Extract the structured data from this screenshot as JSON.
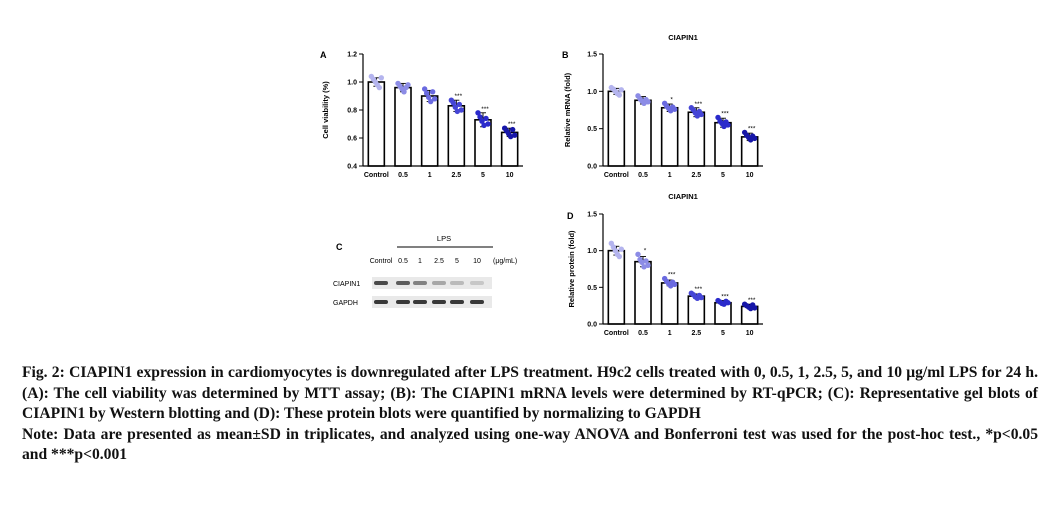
{
  "figure": {
    "panel_a_letter": "A",
    "panel_b_letter": "B",
    "panel_c_letter": "C",
    "panel_d_letter": "D",
    "blot": {
      "treatment_label": "LPS",
      "lanes": [
        "Control",
        "0.5",
        "1",
        "2.5",
        "5",
        "10"
      ],
      "unit": "(μg/mL)",
      "rows": [
        {
          "label": "CIAPIN1",
          "intensity": [
            0.85,
            0.75,
            0.55,
            0.35,
            0.25,
            0.18
          ]
        },
        {
          "label": "GAPDH",
          "intensity": [
            0.95,
            0.95,
            0.95,
            0.95,
            0.95,
            0.95
          ]
        }
      ],
      "colors": {
        "band": "#2e2e2e",
        "background": "#e9e9e9"
      }
    }
  },
  "chart_data": [
    {
      "panel": "A",
      "type": "bar",
      "title": "",
      "xlabel": "",
      "ylabel": "Cell viability (%)",
      "categories": [
        "Control",
        "0.5",
        "1",
        "2.5",
        "5",
        "10"
      ],
      "values": [
        1.0,
        0.96,
        0.9,
        0.83,
        0.73,
        0.64
      ],
      "errors": [
        0.03,
        0.03,
        0.04,
        0.04,
        0.05,
        0.03
      ],
      "significance": [
        "",
        "",
        "",
        "***",
        "***",
        "***"
      ],
      "points": [
        [
          1.04,
          1.02,
          1.0,
          0.98,
          0.96,
          1.03
        ],
        [
          0.99,
          0.97,
          0.95,
          0.93,
          0.96,
          0.98
        ],
        [
          0.95,
          0.92,
          0.89,
          0.86,
          0.93,
          0.88
        ],
        [
          0.87,
          0.85,
          0.82,
          0.79,
          0.84,
          0.8
        ],
        [
          0.78,
          0.75,
          0.72,
          0.69,
          0.74,
          0.7
        ],
        [
          0.67,
          0.65,
          0.63,
          0.61,
          0.66,
          0.62
        ]
      ],
      "ylim": [
        0.4,
        1.2
      ],
      "yticks": [
        "0.4",
        "0.6",
        "0.8",
        "1.0",
        "1.2"
      ]
    },
    {
      "panel": "B",
      "type": "bar",
      "title": "CIAPIN1",
      "xlabel": "",
      "ylabel": "Relative mRNA (fold)",
      "categories": [
        "Control",
        "0.5",
        "1",
        "2.5",
        "5",
        "10"
      ],
      "values": [
        1.0,
        0.88,
        0.78,
        0.72,
        0.58,
        0.39
      ],
      "errors": [
        0.04,
        0.05,
        0.05,
        0.06,
        0.06,
        0.05
      ],
      "significance": [
        "",
        "",
        "*",
        "***",
        "***",
        "***"
      ],
      "points": [
        [
          1.05,
          1.03,
          1.0,
          0.97,
          0.95,
          1.02
        ],
        [
          0.94,
          0.9,
          0.87,
          0.84,
          0.89,
          0.86
        ],
        [
          0.84,
          0.8,
          0.77,
          0.74,
          0.79,
          0.76
        ],
        [
          0.78,
          0.75,
          0.71,
          0.67,
          0.73,
          0.69
        ],
        [
          0.65,
          0.6,
          0.57,
          0.53,
          0.59,
          0.55
        ],
        [
          0.45,
          0.41,
          0.38,
          0.35,
          0.4,
          0.37
        ]
      ],
      "ylim": [
        0.0,
        1.5
      ],
      "yticks": [
        "0.0",
        "0.5",
        "1.0",
        "1.5"
      ]
    },
    {
      "panel": "D",
      "type": "bar",
      "title": "CIAPIN1",
      "xlabel": "",
      "ylabel": "Relative protein (fold)",
      "categories": [
        "Control",
        "0.5",
        "1",
        "2.5",
        "5",
        "10"
      ],
      "values": [
        1.0,
        0.85,
        0.56,
        0.38,
        0.29,
        0.24
      ],
      "errors": [
        0.06,
        0.07,
        0.04,
        0.03,
        0.03,
        0.03
      ],
      "significance": [
        "",
        "*",
        "***",
        "***",
        "***",
        "***"
      ],
      "points": [
        [
          1.1,
          1.05,
          1.0,
          0.95,
          0.92,
          1.02
        ],
        [
          0.95,
          0.88,
          0.84,
          0.78,
          0.86,
          0.8
        ],
        [
          0.62,
          0.58,
          0.55,
          0.52,
          0.57,
          0.54
        ],
        [
          0.42,
          0.4,
          0.37,
          0.35,
          0.39,
          0.36
        ],
        [
          0.32,
          0.3,
          0.28,
          0.27,
          0.31,
          0.29
        ],
        [
          0.27,
          0.25,
          0.23,
          0.21,
          0.26,
          0.22
        ]
      ],
      "ylim": [
        0.0,
        1.5
      ],
      "yticks": [
        "0.0",
        "0.5",
        "1.0",
        "1.5"
      ]
    }
  ],
  "style": {
    "dot_colors": [
      "#b4b4ee",
      "#8c8ce6",
      "#6a6ae0",
      "#4646d6",
      "#2a2acb",
      "#1616a8"
    ],
    "bar_fill": "#ffffff",
    "axis_color": "#000000"
  },
  "caption": {
    "fig_label": "Fig. 2:",
    "text": "CIAPIN1 expression in cardiomyocytes is downregulated after LPS treatment. H9c2 cells treated with 0, 0.5, 1, 2.5, 5, and 10 μg/ml LPS for 24 h. (A): The cell viability was determined by MTT assay; (B): The CIAPIN1 mRNA levels were determined by RT-qPCR; (C): Representative gel blots of CIAPIN1 by Western blotting and (D): These protein blots were quantified by normalizing to GAPDH",
    "note": "Note: Data are presented as mean±SD in triplicates, and analyzed using one-way ANOVA and Bonferroni test was used for the post-hoc test., *p<0.05 and ***p<0.001"
  }
}
